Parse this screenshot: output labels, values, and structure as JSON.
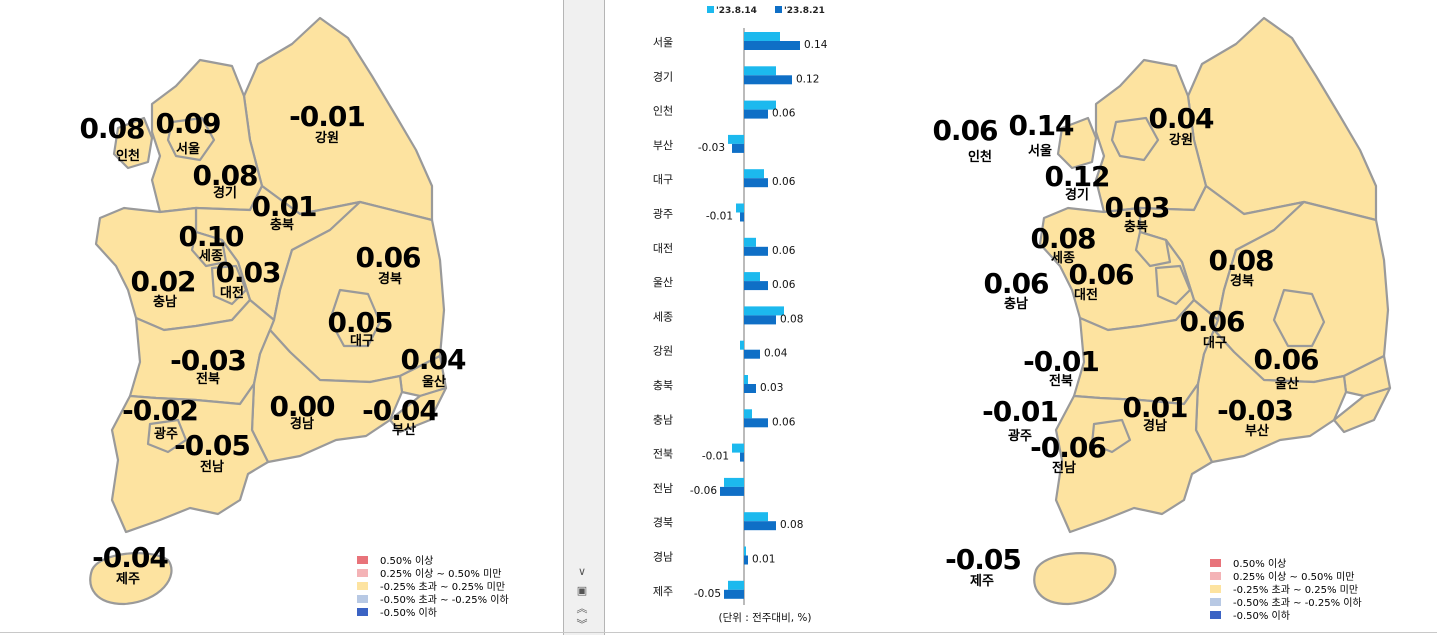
{
  "legend": [
    {
      "label": "0.50% 이상",
      "color": "#e8737a"
    },
    {
      "label": "0.25% 이상 ~ 0.50% 미만",
      "color": "#f4b3b6"
    },
    {
      "label": "-0.25% 초과 ~ 0.25% 미만",
      "color": "#fde3a0"
    },
    {
      "label": "-0.50% 초과 ~ -0.25% 이하",
      "color": "#b8c9e4"
    },
    {
      "label": "-0.50% 이하",
      "color": "#3b63c4"
    }
  ],
  "left_map": {
    "labels": [
      {
        "name": "인천",
        "value": "0.08"
      },
      {
        "name": "서울",
        "value": "0.09"
      },
      {
        "name": "경기",
        "value": "0.08"
      },
      {
        "name": "강원",
        "value": "-0.01"
      },
      {
        "name": "충북",
        "value": "0.01"
      },
      {
        "name": "세종",
        "value": "0.10"
      },
      {
        "name": "충남",
        "value": "0.02"
      },
      {
        "name": "대전",
        "value": "0.03"
      },
      {
        "name": "경북",
        "value": "0.06"
      },
      {
        "name": "대구",
        "value": "0.05"
      },
      {
        "name": "울산",
        "value": "0.04"
      },
      {
        "name": "전북",
        "value": "-0.03"
      },
      {
        "name": "광주",
        "value": "-0.02"
      },
      {
        "name": "전남",
        "value": "-0.05"
      },
      {
        "name": "경남",
        "value": "0.00"
      },
      {
        "name": "부산",
        "value": "-0.04"
      },
      {
        "name": "제주",
        "value": "-0.04"
      }
    ]
  },
  "right_map": {
    "labels": [
      {
        "name": "인천",
        "value": "0.06"
      },
      {
        "name": "서울",
        "value": "0.14"
      },
      {
        "name": "경기",
        "value": "0.12"
      },
      {
        "name": "강원",
        "value": "0.04"
      },
      {
        "name": "충북",
        "value": "0.03"
      },
      {
        "name": "세종",
        "value": "0.08"
      },
      {
        "name": "충남",
        "value": "0.06"
      },
      {
        "name": "대전",
        "value": "0.06"
      },
      {
        "name": "경북",
        "value": "0.08"
      },
      {
        "name": "대구",
        "value": "0.06"
      },
      {
        "name": "울산",
        "value": "0.06"
      },
      {
        "name": "전북",
        "value": "-0.01"
      },
      {
        "name": "광주",
        "value": "-0.01"
      },
      {
        "name": "전남",
        "value": "-0.06"
      },
      {
        "name": "경남",
        "value": "0.01"
      },
      {
        "name": "부산",
        "value": "-0.03"
      },
      {
        "name": "제주",
        "value": "-0.05"
      }
    ]
  },
  "chart_data": {
    "type": "bar",
    "orientation": "horizontal",
    "categories": [
      "서울",
      "경기",
      "인천",
      "부산",
      "대구",
      "광주",
      "대전",
      "울산",
      "세종",
      "강원",
      "충북",
      "충남",
      "전북",
      "전남",
      "경북",
      "경남",
      "제주"
    ],
    "series": [
      {
        "name": "'23.8.14",
        "color": "#1cb9ee",
        "values": [
          0.09,
          0.08,
          0.08,
          -0.04,
          0.05,
          -0.02,
          0.03,
          0.04,
          0.1,
          -0.01,
          0.01,
          0.02,
          -0.03,
          -0.05,
          0.06,
          0.0,
          -0.04
        ]
      },
      {
        "name": "'23.8.21",
        "color": "#0f6fc6",
        "values": [
          0.14,
          0.12,
          0.06,
          -0.03,
          0.06,
          -0.01,
          0.06,
          0.06,
          0.08,
          0.04,
          0.03,
          0.06,
          -0.01,
          -0.06,
          0.08,
          0.01,
          -0.05
        ]
      }
    ],
    "value_labels": [
      "0.14",
      "0.12",
      "0.06",
      "-0.03",
      "0.06",
      "-0.01",
      "0.06",
      "0.06",
      "0.08",
      "0.04",
      "0.03",
      "0.06",
      "-0.01",
      "-0.06",
      "0.08",
      "0.01",
      "-0.05"
    ],
    "unit_note": "(단위 : 전주대비, %)"
  },
  "scroll": {
    "down": "∨",
    "middle": "▣",
    "up": "≈",
    "down2": "≈"
  }
}
